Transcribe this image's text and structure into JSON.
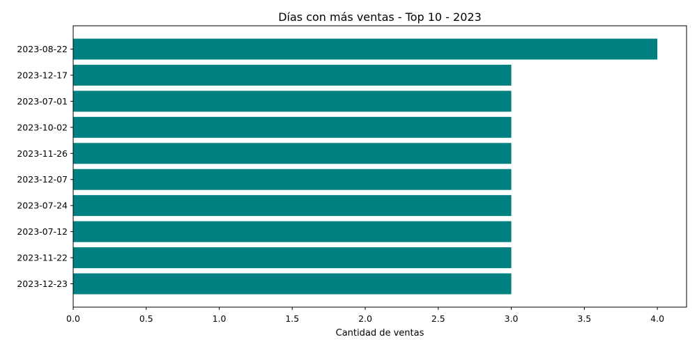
{
  "chart_data": {
    "type": "bar",
    "orientation": "horizontal",
    "title": "Días con más ventas - Top 10 - 2023",
    "xlabel": "Cantidad de ventas",
    "ylabel": "",
    "xlim": [
      0,
      4.2
    ],
    "xticks": [
      "0.0",
      "0.5",
      "1.0",
      "1.5",
      "2.0",
      "2.5",
      "3.0",
      "3.5",
      "4.0"
    ],
    "categories": [
      "2023-08-22",
      "2023-12-17",
      "2023-07-01",
      "2023-10-02",
      "2023-11-26",
      "2023-12-07",
      "2023-07-24",
      "2023-07-12",
      "2023-11-22",
      "2023-12-23"
    ],
    "values": [
      4,
      3,
      3,
      3,
      3,
      3,
      3,
      3,
      3,
      3
    ],
    "bar_color": "#008080",
    "grid": false,
    "legend": "none"
  }
}
